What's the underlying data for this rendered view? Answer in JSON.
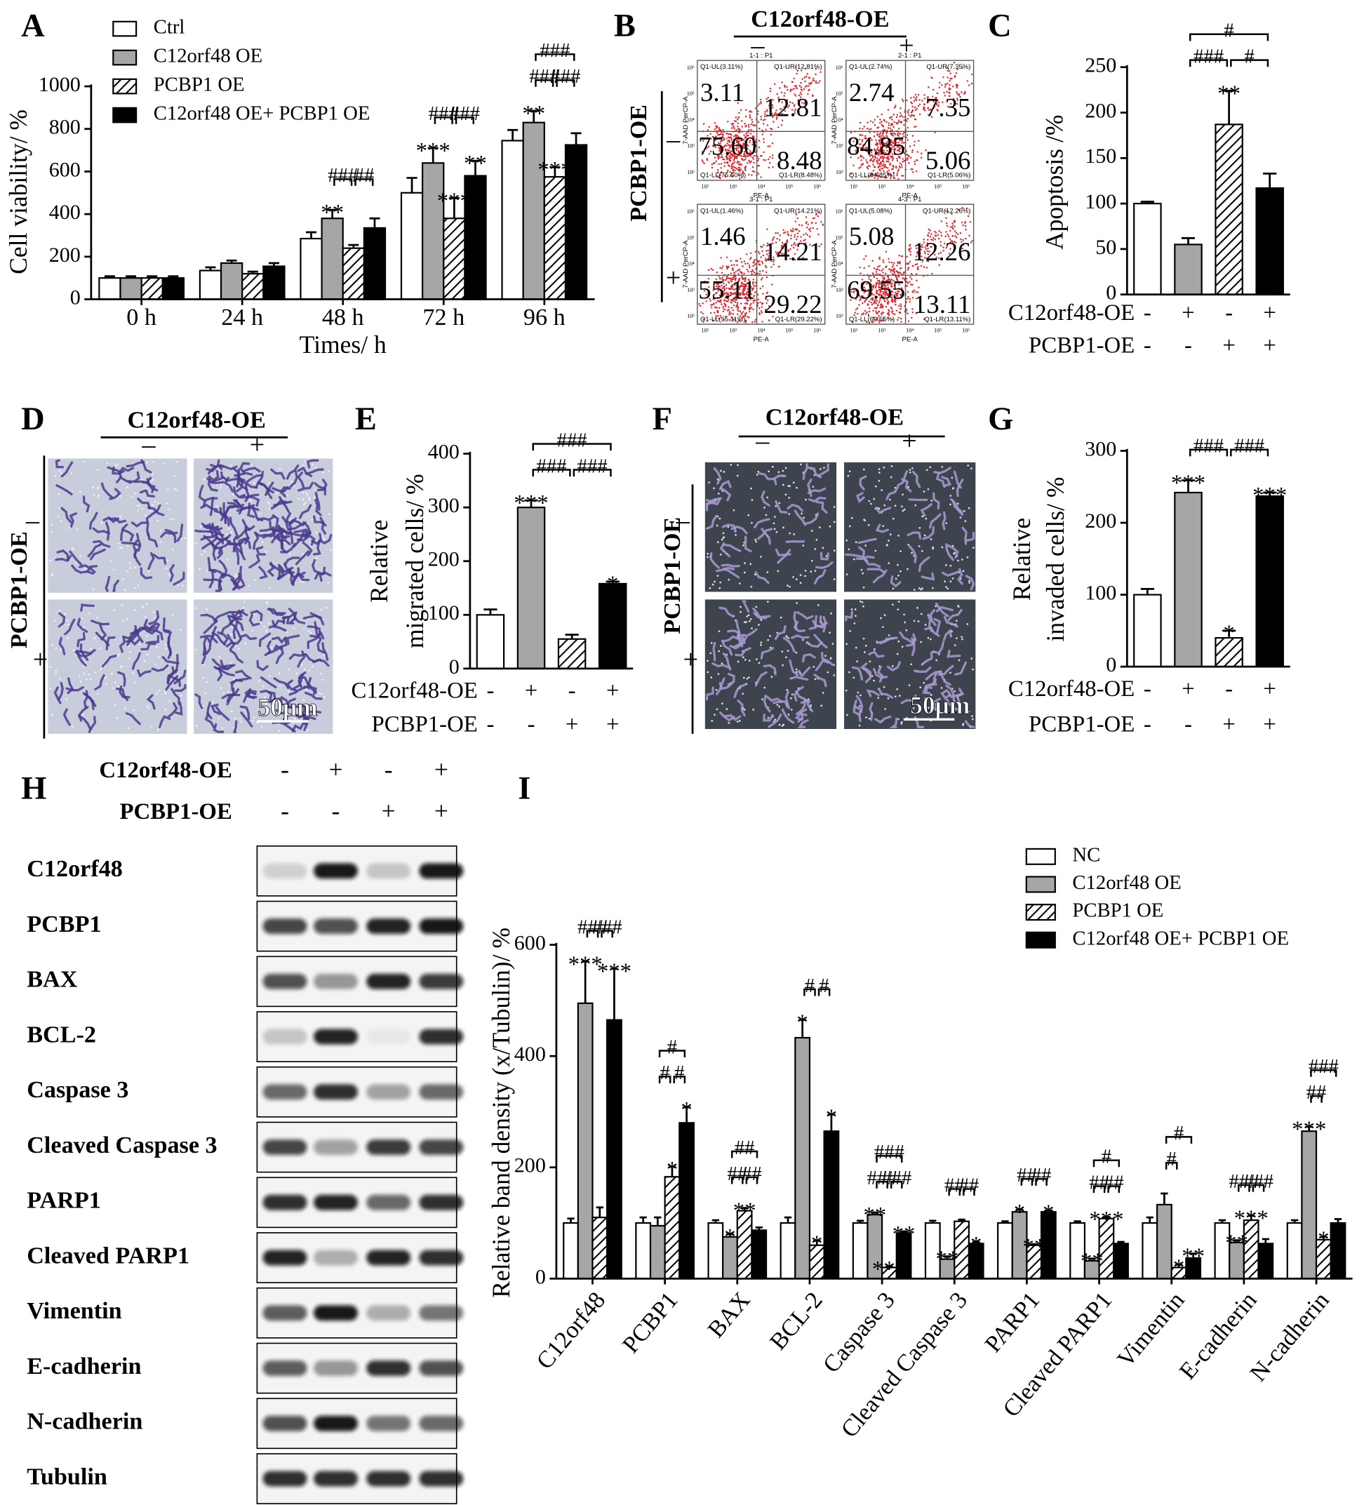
{
  "panel_labels": [
    "A",
    "B",
    "C",
    "D",
    "E",
    "F",
    "G",
    "H",
    "I"
  ],
  "chart_data": [
    {
      "type": "bar",
      "ylabel": "Cell viability/ %",
      "xlabel": "Times/ h",
      "categories": [
        "0 h",
        "24 h",
        "48 h",
        "72 h",
        "96 h"
      ],
      "series": [
        {
          "name": "Ctrl",
          "fill": "#ffffff",
          "values": [
            100,
            135,
            285,
            500,
            745
          ],
          "errors": [
            8,
            15,
            30,
            70,
            50
          ]
        },
        {
          "name": "C12orf48 OE",
          "fill": "#a6a6a6",
          "values": [
            100,
            170,
            380,
            640,
            830
          ],
          "errors": [
            8,
            12,
            40,
            70,
            55
          ]
        },
        {
          "name": "PCBP1 OE",
          "fill": "hatch",
          "values": [
            100,
            120,
            240,
            380,
            575
          ],
          "errors": [
            8,
            10,
            15,
            95,
            45
          ]
        },
        {
          "name": "C12orf48 OE+ PCBP1 OE",
          "fill": "#000000",
          "values": [
            100,
            155,
            335,
            580,
            725
          ],
          "errors": [
            8,
            15,
            45,
            70,
            55
          ]
        }
      ],
      "ylim": [
        0,
        1000
      ],
      "yticks": [
        0,
        200,
        400,
        600,
        800,
        1000
      ],
      "legend": "top-left",
      "annotations": [
        {
          "text": "**",
          "at": [
            2,
            1
          ]
        },
        {
          "text": "***",
          "at": [
            3,
            1
          ]
        },
        {
          "text": "***",
          "at": [
            3,
            2
          ]
        },
        {
          "text": "**",
          "at": [
            3,
            3
          ]
        },
        {
          "text": "**",
          "at": [
            4,
            1
          ]
        },
        {
          "text": "***",
          "at": [
            4,
            2
          ]
        }
      ],
      "brackets": [
        {
          "text": "###",
          "at": 2,
          "between": [
            1,
            2
          ]
        },
        {
          "text": "##",
          "at": 2,
          "between": [
            2,
            3
          ]
        },
        {
          "text": "###",
          "at": 3,
          "between": [
            1,
            2
          ]
        },
        {
          "text": "###",
          "at": 3,
          "between": [
            2,
            3
          ]
        },
        {
          "text": "###",
          "at": 4,
          "between": [
            1,
            2
          ]
        },
        {
          "text": "###",
          "at": 4,
          "between": [
            2,
            3
          ]
        },
        {
          "text": "###",
          "at": 4,
          "between": [
            1,
            3
          ]
        }
      ]
    },
    {
      "type": "bar",
      "ylabel": [
        "Apoptosis /%"
      ],
      "values": [
        100,
        55,
        187,
        117
      ],
      "errors": [
        2,
        7,
        37,
        16
      ],
      "fills": [
        "#ffffff",
        "#a6a6a6",
        "hatch",
        "#000000"
      ],
      "ylim": [
        0,
        250
      ],
      "yticks": [
        0,
        50,
        100,
        150,
        200,
        250
      ],
      "conditions": [
        {
          "name": "C12orf48-OE",
          "values": [
            "-",
            "+",
            "-",
            "+"
          ]
        },
        {
          "name": "PCBP1-OE",
          "values": [
            "-",
            "-",
            "+",
            "+"
          ]
        }
      ],
      "annotations": [
        {
          "text": "**",
          "at": [
            2
          ]
        }
      ],
      "brackets": [
        {
          "text": "###",
          "between": [
            1,
            2
          ]
        },
        {
          "text": "#",
          "between": [
            2,
            3
          ]
        },
        {
          "text": "#",
          "between": [
            1,
            3
          ]
        }
      ]
    },
    {
      "type": "bar",
      "ylabel": [
        "Relative",
        "migrated cells/ %"
      ],
      "values": [
        100,
        300,
        55,
        158
      ],
      "errors": [
        10,
        13,
        8,
        4
      ],
      "fills": [
        "#ffffff",
        "#a6a6a6",
        "hatch",
        "#000000"
      ],
      "ylim": [
        0,
        400
      ],
      "yticks": [
        0,
        100,
        200,
        300,
        400
      ],
      "conditions": [
        {
          "name": "C12orf48-OE",
          "values": [
            "-",
            "+",
            "-",
            "+"
          ]
        },
        {
          "name": "PCBP1-OE",
          "values": [
            "-",
            "-",
            "+",
            "+"
          ]
        }
      ],
      "annotations": [
        {
          "text": "***",
          "at": [
            1
          ]
        },
        {
          "text": "*",
          "at": [
            3
          ]
        }
      ],
      "brackets": [
        {
          "text": "###",
          "between": [
            1,
            2
          ]
        },
        {
          "text": "###",
          "between": [
            2,
            3
          ]
        },
        {
          "text": "###",
          "between": [
            1,
            3
          ]
        }
      ]
    },
    {
      "type": "bar",
      "ylabel": [
        "Relative",
        "invaded cells/ %"
      ],
      "values": [
        100,
        242,
        40,
        237
      ],
      "errors": [
        8,
        17,
        10,
        5
      ],
      "fills": [
        "#ffffff",
        "#a6a6a6",
        "hatch",
        "#000000"
      ],
      "ylim": [
        0,
        300
      ],
      "yticks": [
        0,
        100,
        200,
        300
      ],
      "conditions": [
        {
          "name": "C12orf48-OE",
          "values": [
            "-",
            "+",
            "-",
            "+"
          ]
        },
        {
          "name": "PCBP1-OE",
          "values": [
            "-",
            "-",
            "+",
            "+"
          ]
        }
      ],
      "annotations": [
        {
          "text": "***",
          "at": [
            1
          ]
        },
        {
          "text": "*",
          "at": [
            2
          ]
        },
        {
          "text": "***",
          "at": [
            3
          ]
        }
      ],
      "brackets": [
        {
          "text": "###",
          "between": [
            1,
            2
          ]
        },
        {
          "text": "###",
          "between": [
            2,
            3
          ]
        }
      ]
    },
    {
      "type": "bar",
      "ylabel": "Relative band density (x/Tubulin)/ %",
      "categories": [
        "C12orf48",
        "PCBP1",
        "BAX",
        "BCL-2",
        "Caspase 3",
        "Cleaved Caspase 3",
        "PARP1",
        "Cleaved PARP1",
        "Vimentin",
        "E-cadherin",
        "N-cadherin"
      ],
      "series": [
        {
          "name": "NC",
          "fill": "#ffffff",
          "values": [
            100,
            100,
            100,
            100,
            100,
            100,
            100,
            100,
            100,
            100,
            100
          ],
          "errors": [
            8,
            10,
            5,
            10,
            4,
            4,
            3,
            3,
            10,
            5,
            5
          ]
        },
        {
          "name": "C12orf48 OE",
          "fill": "#a6a6a6",
          "values": [
            495,
            95,
            75,
            433,
            115,
            35,
            120,
            32,
            133,
            65,
            265
          ],
          "errors": [
            75,
            15,
            5,
            32,
            4,
            5,
            4,
            4,
            20,
            4,
            8
          ]
        },
        {
          "name": "PCBP1 OE",
          "fill": "hatch",
          "values": [
            110,
            183,
            122,
            60,
            20,
            103,
            60,
            108,
            20,
            105,
            70
          ],
          "errors": [
            18,
            18,
            5,
            8,
            2,
            3,
            2,
            3,
            5,
            8,
            5
          ]
        },
        {
          "name": "C12orf48 OE+ PCBP1 OE",
          "fill": "#000000",
          "values": [
            465,
            280,
            87,
            265,
            82,
            63,
            120,
            63,
            37,
            63,
            100
          ],
          "errors": [
            92,
            28,
            5,
            30,
            3,
            3,
            3,
            3,
            8,
            8,
            7
          ]
        }
      ],
      "ylim": [
        0,
        600
      ],
      "yticks": [
        0,
        200,
        400,
        600
      ],
      "legend": "top-right",
      "annotations": [
        {
          "text": "***",
          "at": [
            0,
            1
          ]
        },
        {
          "text": "***",
          "at": [
            0,
            3
          ]
        },
        {
          "text": "*",
          "at": [
            1,
            2
          ]
        },
        {
          "text": "*",
          "at": [
            1,
            3
          ]
        },
        {
          "text": "*",
          "at": [
            2,
            1
          ]
        },
        {
          "text": "**",
          "at": [
            2,
            2
          ]
        },
        {
          "text": "*",
          "at": [
            3,
            1
          ]
        },
        {
          "text": "*",
          "at": [
            3,
            2
          ]
        },
        {
          "text": "*",
          "at": [
            3,
            3
          ]
        },
        {
          "text": "**",
          "at": [
            4,
            1
          ]
        },
        {
          "text": "***",
          "at": [
            4,
            2
          ]
        },
        {
          "text": "**",
          "at": [
            4,
            3
          ]
        },
        {
          "text": "**",
          "at": [
            5,
            1
          ]
        },
        {
          "text": "*",
          "at": [
            5,
            3
          ]
        },
        {
          "text": "*",
          "at": [
            6,
            1
          ]
        },
        {
          "text": "**",
          "at": [
            6,
            2
          ]
        },
        {
          "text": "*",
          "at": [
            6,
            3
          ]
        },
        {
          "text": "**",
          "at": [
            7,
            1
          ]
        },
        {
          "text": "***",
          "at": [
            7,
            2
          ]
        },
        {
          "text": "*",
          "at": [
            8,
            2
          ]
        },
        {
          "text": "**",
          "at": [
            8,
            3
          ]
        },
        {
          "text": "**",
          "at": [
            9,
            1
          ]
        },
        {
          "text": "***",
          "at": [
            9,
            2
          ]
        },
        {
          "text": "***",
          "at": [
            10,
            1
          ]
        },
        {
          "text": "*",
          "at": [
            10,
            2
          ]
        }
      ],
      "brackets": [
        {
          "text": "###",
          "at": 0,
          "between": [
            1,
            2
          ]
        },
        {
          "text": "###",
          "at": 0,
          "between": [
            2,
            3
          ]
        },
        {
          "text": "#",
          "at": 1,
          "between": [
            1,
            2
          ]
        },
        {
          "text": "#",
          "at": 1,
          "between": [
            2,
            3
          ]
        },
        {
          "text": "#",
          "at": 1,
          "between": [
            1,
            3
          ]
        },
        {
          "text": "##",
          "at": 2,
          "between": [
            1,
            2
          ]
        },
        {
          "text": "##",
          "at": 2,
          "between": [
            2,
            3
          ]
        },
        {
          "text": "##",
          "at": 2,
          "between": [
            1,
            3
          ]
        },
        {
          "text": "#",
          "at": 3,
          "between": [
            1,
            2
          ]
        },
        {
          "text": "#",
          "at": 3,
          "between": [
            2,
            3
          ]
        },
        {
          "text": "###",
          "at": 4,
          "between": [
            1,
            2
          ]
        },
        {
          "text": "###",
          "at": 4,
          "between": [
            2,
            3
          ]
        },
        {
          "text": "###",
          "at": 4,
          "between": [
            1,
            3
          ]
        },
        {
          "text": "##",
          "at": 5,
          "between": [
            1,
            2
          ]
        },
        {
          "text": "##",
          "at": 5,
          "between": [
            2,
            3
          ]
        },
        {
          "text": "##",
          "at": 6,
          "between": [
            1,
            2
          ]
        },
        {
          "text": "##",
          "at": 6,
          "between": [
            2,
            3
          ]
        },
        {
          "text": "##",
          "at": 7,
          "between": [
            1,
            2
          ]
        },
        {
          "text": "##",
          "at": 7,
          "between": [
            2,
            3
          ]
        },
        {
          "text": "#",
          "at": 7,
          "between": [
            1,
            3
          ]
        },
        {
          "text": "#",
          "at": 8,
          "between": [
            1,
            2
          ]
        },
        {
          "text": "#",
          "at": 8,
          "between": [
            1,
            3
          ]
        },
        {
          "text": "###",
          "at": 9,
          "between": [
            1,
            2
          ]
        },
        {
          "text": "###",
          "at": 9,
          "between": [
            2,
            3
          ]
        },
        {
          "text": "##",
          "at": 10,
          "between": [
            1,
            2
          ]
        },
        {
          "text": "###",
          "at": 10,
          "between": [
            1,
            3
          ]
        }
      ]
    }
  ],
  "flow": {
    "title": "C12orf48-OE",
    "columns": [
      "–",
      "+"
    ],
    "row_title": "PCBP1-OE",
    "rows": [
      "–",
      "+"
    ],
    "axis_x": "PE-A",
    "axis_y": "7-AAD PerCP-A",
    "ticks": [
      "10²",
      "10³",
      "10⁴",
      "10⁵",
      "10⁶"
    ],
    "plots": [
      {
        "name": "1-1 : P1",
        "ul_label": "Q1-UL(3.11%)",
        "ul": "3.11",
        "ur_label": "Q1-UR(12.81%)",
        "ur": "12.81",
        "ll_label": "Q1-LL(75.60%)",
        "ll": "75.60",
        "lr_label": "Q1-LR(8.48%)",
        "lr": "8.48"
      },
      {
        "name": "2-1 : P1",
        "ul_label": "Q1-UL(2.74%)",
        "ul": "2.74",
        "ur_label": "Q1-UR(7.35%)",
        "ur": "7.35",
        "ll_label": "Q1-LL(84.85%)",
        "ll": "84.85",
        "lr_label": "Q1-LR(5.06%)",
        "lr": "5.06"
      },
      {
        "name": "3-1 : P1",
        "ul_label": "Q1-UL(1.46%)",
        "ul": "1.46",
        "ur_label": "Q1-UR(14.21%)",
        "ur": "14.21",
        "ll_label": "Q1-LL(55.11%)",
        "ll": "55.11",
        "lr_label": "Q1-LR(29.22%)",
        "lr": "29.22"
      },
      {
        "name": "4-3 : P1",
        "ul_label": "Q1-UL(5.08%)",
        "ul": "5.08",
        "ur_label": "Q1-UR(12.26%)",
        "ur": "12.26",
        "ll_label": "Q1-LL(69.55%)",
        "ll": "69.55",
        "lr_label": "Q1-LR(13.11%)",
        "lr": "13.11"
      }
    ]
  },
  "transwell": [
    {
      "title": "C12orf48-OE",
      "columns": [
        "–",
        "+"
      ],
      "row_title": "PCBP1-OE",
      "rows": [
        "–",
        "+"
      ],
      "scale": "50μm"
    },
    {
      "title": "C12orf48-OE",
      "columns": [
        "–",
        "+"
      ],
      "row_title": "PCBP1-OE",
      "rows": [
        "–",
        "+"
      ],
      "scale": "50μm"
    }
  ],
  "blot": {
    "conditions": [
      {
        "name": "C12orf48-OE",
        "values": [
          "-",
          "+",
          "-",
          "+"
        ]
      },
      {
        "name": "PCBP1-OE",
        "values": [
          "-",
          "-",
          "+",
          "+"
        ]
      }
    ],
    "rows": [
      {
        "label": "C12orf48",
        "intensity": [
          0.15,
          0.95,
          0.2,
          0.95
        ]
      },
      {
        "label": "PCBP1",
        "intensity": [
          0.75,
          0.7,
          0.9,
          0.95
        ]
      },
      {
        "label": "BAX",
        "intensity": [
          0.7,
          0.4,
          0.9,
          0.8
        ]
      },
      {
        "label": "BCL-2",
        "intensity": [
          0.2,
          0.9,
          0.05,
          0.85
        ]
      },
      {
        "label": "Caspase 3",
        "intensity": [
          0.6,
          0.85,
          0.35,
          0.6
        ]
      },
      {
        "label": "Cleaved Caspase 3",
        "intensity": [
          0.75,
          0.35,
          0.8,
          0.75
        ]
      },
      {
        "label": "PARP1",
        "intensity": [
          0.85,
          0.9,
          0.6,
          0.85
        ]
      },
      {
        "label": "Cleaved PARP1",
        "intensity": [
          0.9,
          0.3,
          0.9,
          0.85
        ]
      },
      {
        "label": "Vimentin",
        "intensity": [
          0.65,
          0.95,
          0.3,
          0.55
        ]
      },
      {
        "label": "E-cadherin",
        "intensity": [
          0.65,
          0.4,
          0.85,
          0.7
        ]
      },
      {
        "label": "N-cadherin",
        "intensity": [
          0.7,
          0.95,
          0.55,
          0.6
        ]
      },
      {
        "label": "Tubulin",
        "intensity": [
          0.85,
          0.85,
          0.85,
          0.85
        ]
      }
    ]
  }
}
